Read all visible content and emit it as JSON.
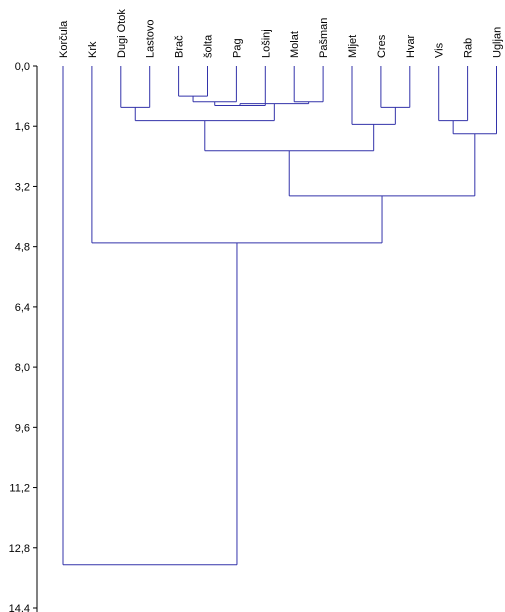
{
  "chart_data": {
    "type": "dendrogram",
    "title": "",
    "xlabel": "",
    "ylabel": "",
    "ylim": [
      0,
      14.4
    ],
    "y_ticks": [
      "0,0",
      "1,6",
      "3,2",
      "4,8",
      "6,4",
      "8,0",
      "9,6",
      "11,2",
      "12,8",
      "14,4"
    ],
    "y_tick_values": [
      0,
      1.6,
      3.2,
      4.8,
      6.4,
      8.0,
      9.6,
      11.2,
      12.8,
      14.4
    ],
    "leaves": [
      "Korčula",
      "Krk",
      "Dugi Otok",
      "Lastovo",
      "Brač",
      "šolta",
      "Pag",
      "Lošinj",
      "Molat",
      "Pašman",
      "Mljet",
      "Cres",
      "Hvar",
      "Vis",
      "Rab",
      "Ugljan"
    ],
    "merges": [
      {
        "left": "L5",
        "right": "L6",
        "height": 0.8
      },
      {
        "left": "N1",
        "right": "L7",
        "height": 0.95
      },
      {
        "left": "L9",
        "right": "L10",
        "height": 0.95
      },
      {
        "left": "N2",
        "right": "L8",
        "height": 1.05
      },
      {
        "left": "N4",
        "right": "N3",
        "height": 1.0
      },
      {
        "left": "L3",
        "right": "L4",
        "height": 1.1
      },
      {
        "left": "L12",
        "right": "L13",
        "height": 1.1
      },
      {
        "left": "L14",
        "right": "L15",
        "height": 1.45
      },
      {
        "left": "N6",
        "right": "N5",
        "height": 1.45
      },
      {
        "left": "L11",
        "right": "N7",
        "height": 1.55
      },
      {
        "left": "N8",
        "right": "L16",
        "height": 1.8
      },
      {
        "left": "N9",
        "right": "N10",
        "height": 2.25
      },
      {
        "left": "N12",
        "right": "N11",
        "height": 3.45
      },
      {
        "left": "L2",
        "right": "N13",
        "height": 4.7
      },
      {
        "left": "L1",
        "right": "N14",
        "height": 13.25
      }
    ],
    "line_color": "#3333aa",
    "grid": false
  }
}
